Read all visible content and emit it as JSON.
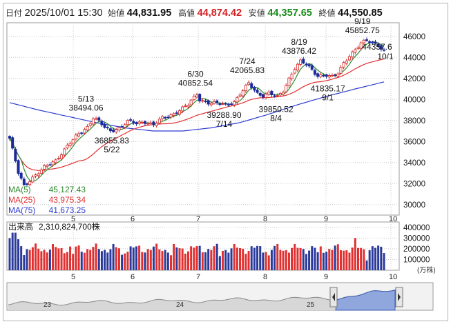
{
  "header": {
    "date_label": "日付",
    "datetime": "2025/10/01 15:30",
    "open_label": "始値",
    "open": "44,831.95",
    "high_label": "高値",
    "high": "44,874.42",
    "low_label": "安値",
    "low": "44,357.65",
    "close_label": "終値",
    "close": "44,550.85"
  },
  "colors": {
    "up": "#d42020",
    "down": "#1a2a9a",
    "high_value": "#d42020",
    "low_value": "#1a8a1a",
    "ma5": "#2a8a2a",
    "ma25": "#e03030",
    "ma75": "#2a3ad0",
    "volume_up": "#e03030",
    "volume_down": "#2a3a9a",
    "overview_fill": "#8fa7dc"
  },
  "chart_data": {
    "type": "candlestick",
    "price_axis": {
      "ticks": [
        30000,
        32000,
        34000,
        36000,
        38000,
        40000,
        42000,
        44000,
        46000
      ],
      "ylim": [
        29000,
        47300
      ]
    },
    "month_labels": [
      "5",
      "6",
      "7",
      "8",
      "9",
      "10"
    ],
    "legend": [
      {
        "label": "MA(5)",
        "value": "45,127.43",
        "color": "#2a8a2a"
      },
      {
        "label": "MA(25)",
        "value": "43,975.34",
        "color": "#e03030"
      },
      {
        "label": "MA(75)",
        "value": "41,673.25",
        "color": "#2a3ad0"
      }
    ],
    "annotations": [
      {
        "date": "5/13",
        "value": "38494.06",
        "kind": "high"
      },
      {
        "date": "5/22",
        "value": "36855.83",
        "kind": "low"
      },
      {
        "date": "6/30",
        "value": "40852.54",
        "kind": "high"
      },
      {
        "date": "7/14",
        "value": "39288.90",
        "kind": "low"
      },
      {
        "date": "7/24",
        "value": "42065.83",
        "kind": "high"
      },
      {
        "date": "8/4",
        "value": "39850.52",
        "kind": "low"
      },
      {
        "date": "8/19",
        "value": "43876.42",
        "kind": "high"
      },
      {
        "date": "9/1",
        "value": "41835.17",
        "kind": "low"
      },
      {
        "date": "9/19",
        "value": "45852.75",
        "kind": "high"
      },
      {
        "date": "10/1",
        "value": "44357.6",
        "kind": "low"
      }
    ],
    "close_anchors": [
      [
        0,
        36300
      ],
      [
        3,
        33000
      ],
      [
        5,
        31800
      ],
      [
        8,
        32600
      ],
      [
        12,
        33500
      ],
      [
        16,
        34200
      ],
      [
        20,
        35600
      ],
      [
        24,
        36700
      ],
      [
        27,
        37400
      ],
      [
        29,
        38300
      ],
      [
        31,
        37900
      ],
      [
        33,
        37300
      ],
      [
        35,
        37000
      ],
      [
        38,
        37300
      ],
      [
        41,
        37900
      ],
      [
        44,
        37700
      ],
      [
        47,
        37900
      ],
      [
        50,
        37600
      ],
      [
        53,
        38200
      ],
      [
        56,
        38500
      ],
      [
        59,
        39000
      ],
      [
        62,
        39500
      ],
      [
        65,
        40500
      ],
      [
        66,
        40000
      ],
      [
        69,
        39700
      ],
      [
        72,
        39600
      ],
      [
        75,
        39500
      ],
      [
        78,
        39800
      ],
      [
        80,
        40500
      ],
      [
        83,
        41500
      ],
      [
        84,
        41200
      ],
      [
        86,
        40600
      ],
      [
        88,
        40400
      ],
      [
        90,
        40600
      ],
      [
        93,
        40200
      ],
      [
        95,
        40800
      ],
      [
        97,
        42000
      ],
      [
        99,
        43000
      ],
      [
        101,
        43600
      ],
      [
        103,
        43300
      ],
      [
        105,
        42800
      ],
      [
        107,
        42300
      ],
      [
        110,
        42300
      ],
      [
        112,
        42100
      ],
      [
        114,
        42500
      ],
      [
        116,
        43500
      ],
      [
        118,
        44200
      ],
      [
        120,
        44700
      ],
      [
        122,
        45300
      ],
      [
        124,
        45600
      ],
      [
        126,
        45450
      ],
      [
        128,
        45200
      ],
      [
        130,
        44550
      ]
    ],
    "ma75_anchors": [
      [
        0,
        39700
      ],
      [
        10,
        39000
      ],
      [
        20,
        38400
      ],
      [
        30,
        37800
      ],
      [
        40,
        37300
      ],
      [
        50,
        37000
      ],
      [
        60,
        37000
      ],
      [
        70,
        37300
      ],
      [
        80,
        37800
      ],
      [
        90,
        38600
      ],
      [
        100,
        39500
      ],
      [
        110,
        40300
      ],
      [
        120,
        41000
      ],
      [
        130,
        41673
      ]
    ],
    "volume_axis": {
      "ticks": [
        100000,
        200000,
        300000,
        400000
      ],
      "ylim": [
        0,
        450000
      ],
      "unit": "(万株)"
    },
    "volume_label": "出来高",
    "volume_value": "2,310,824,700株",
    "overview_labels": [
      "23",
      "24",
      "25"
    ]
  }
}
